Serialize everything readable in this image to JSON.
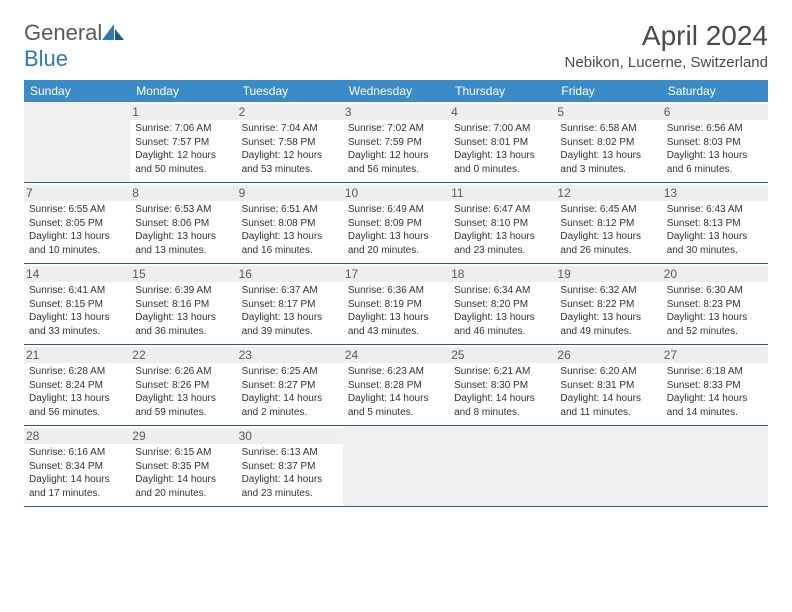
{
  "logo": {
    "word1": "General",
    "word2": "Blue"
  },
  "title": "April 2024",
  "location": "Nebikon, Lucerne, Switzerland",
  "brand_color": "#3b8bc9",
  "header_text_color": "#ffffff",
  "border_color": "#2a5a8a",
  "daynum_bg": "#eeeeee",
  "empty_bg": "#f0f0f0",
  "weekdays": [
    "Sunday",
    "Monday",
    "Tuesday",
    "Wednesday",
    "Thursday",
    "Friday",
    "Saturday"
  ],
  "days": [
    {
      "n": "1",
      "sr": "7:06 AM",
      "ss": "7:57 PM",
      "dl": "12 hours and 50 minutes."
    },
    {
      "n": "2",
      "sr": "7:04 AM",
      "ss": "7:58 PM",
      "dl": "12 hours and 53 minutes."
    },
    {
      "n": "3",
      "sr": "7:02 AM",
      "ss": "7:59 PM",
      "dl": "12 hours and 56 minutes."
    },
    {
      "n": "4",
      "sr": "7:00 AM",
      "ss": "8:01 PM",
      "dl": "13 hours and 0 minutes."
    },
    {
      "n": "5",
      "sr": "6:58 AM",
      "ss": "8:02 PM",
      "dl": "13 hours and 3 minutes."
    },
    {
      "n": "6",
      "sr": "6:56 AM",
      "ss": "8:03 PM",
      "dl": "13 hours and 6 minutes."
    },
    {
      "n": "7",
      "sr": "6:55 AM",
      "ss": "8:05 PM",
      "dl": "13 hours and 10 minutes."
    },
    {
      "n": "8",
      "sr": "6:53 AM",
      "ss": "8:06 PM",
      "dl": "13 hours and 13 minutes."
    },
    {
      "n": "9",
      "sr": "6:51 AM",
      "ss": "8:08 PM",
      "dl": "13 hours and 16 minutes."
    },
    {
      "n": "10",
      "sr": "6:49 AM",
      "ss": "8:09 PM",
      "dl": "13 hours and 20 minutes."
    },
    {
      "n": "11",
      "sr": "6:47 AM",
      "ss": "8:10 PM",
      "dl": "13 hours and 23 minutes."
    },
    {
      "n": "12",
      "sr": "6:45 AM",
      "ss": "8:12 PM",
      "dl": "13 hours and 26 minutes."
    },
    {
      "n": "13",
      "sr": "6:43 AM",
      "ss": "8:13 PM",
      "dl": "13 hours and 30 minutes."
    },
    {
      "n": "14",
      "sr": "6:41 AM",
      "ss": "8:15 PM",
      "dl": "13 hours and 33 minutes."
    },
    {
      "n": "15",
      "sr": "6:39 AM",
      "ss": "8:16 PM",
      "dl": "13 hours and 36 minutes."
    },
    {
      "n": "16",
      "sr": "6:37 AM",
      "ss": "8:17 PM",
      "dl": "13 hours and 39 minutes."
    },
    {
      "n": "17",
      "sr": "6:36 AM",
      "ss": "8:19 PM",
      "dl": "13 hours and 43 minutes."
    },
    {
      "n": "18",
      "sr": "6:34 AM",
      "ss": "8:20 PM",
      "dl": "13 hours and 46 minutes."
    },
    {
      "n": "19",
      "sr": "6:32 AM",
      "ss": "8:22 PM",
      "dl": "13 hours and 49 minutes."
    },
    {
      "n": "20",
      "sr": "6:30 AM",
      "ss": "8:23 PM",
      "dl": "13 hours and 52 minutes."
    },
    {
      "n": "21",
      "sr": "6:28 AM",
      "ss": "8:24 PM",
      "dl": "13 hours and 56 minutes."
    },
    {
      "n": "22",
      "sr": "6:26 AM",
      "ss": "8:26 PM",
      "dl": "13 hours and 59 minutes."
    },
    {
      "n": "23",
      "sr": "6:25 AM",
      "ss": "8:27 PM",
      "dl": "14 hours and 2 minutes."
    },
    {
      "n": "24",
      "sr": "6:23 AM",
      "ss": "8:28 PM",
      "dl": "14 hours and 5 minutes."
    },
    {
      "n": "25",
      "sr": "6:21 AM",
      "ss": "8:30 PM",
      "dl": "14 hours and 8 minutes."
    },
    {
      "n": "26",
      "sr": "6:20 AM",
      "ss": "8:31 PM",
      "dl": "14 hours and 11 minutes."
    },
    {
      "n": "27",
      "sr": "6:18 AM",
      "ss": "8:33 PM",
      "dl": "14 hours and 14 minutes."
    },
    {
      "n": "28",
      "sr": "6:16 AM",
      "ss": "8:34 PM",
      "dl": "14 hours and 17 minutes."
    },
    {
      "n": "29",
      "sr": "6:15 AM",
      "ss": "8:35 PM",
      "dl": "14 hours and 20 minutes."
    },
    {
      "n": "30",
      "sr": "6:13 AM",
      "ss": "8:37 PM",
      "dl": "14 hours and 23 minutes."
    }
  ],
  "labels": {
    "sunrise": "Sunrise:",
    "sunset": "Sunset:",
    "daylight": "Daylight:"
  },
  "layout": {
    "start_weekday": 1,
    "rows": 5,
    "cols": 7
  }
}
